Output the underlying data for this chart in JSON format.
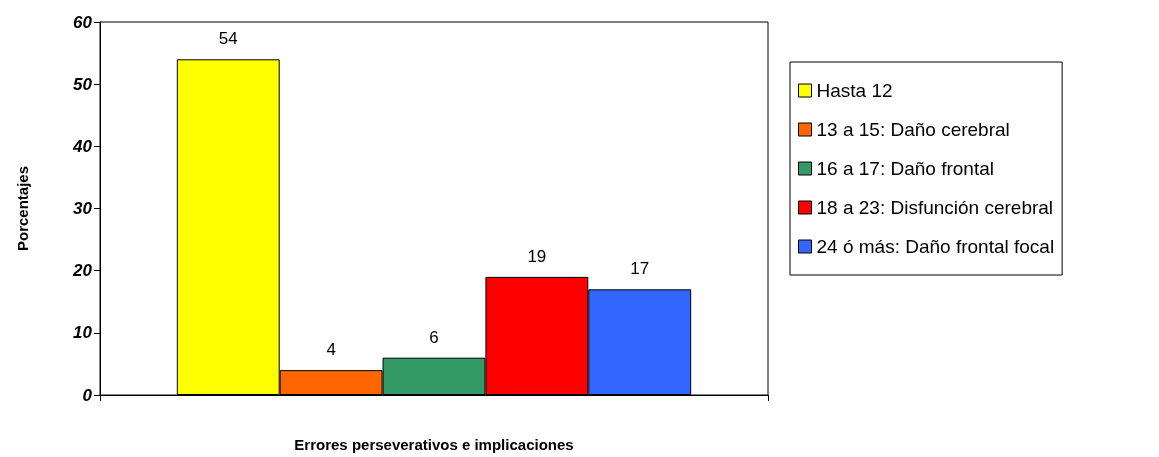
{
  "chart_data": {
    "type": "bar",
    "xlabel": "Errores perseverativos e implicaciones",
    "ylabel": "Porcentajes",
    "categories": [
      null
    ],
    "series": [
      {
        "name": "Hasta 12",
        "color": "#ffff00",
        "values": [
          54
        ]
      },
      {
        "name": "13 a 15: Daño cerebral",
        "color": "#ff6600",
        "values": [
          4
        ]
      },
      {
        "name": "16 a 17: Daño frontal",
        "color": "#339966",
        "values": [
          6
        ]
      },
      {
        "name": "18 a 23: Disfunción cerebral",
        "color": "#ff0000",
        "values": [
          19
        ]
      },
      {
        "name": "24 ó más: Daño frontal focal",
        "color": "#3366ff",
        "values": [
          17
        ]
      }
    ],
    "ylim": [
      0,
      60
    ],
    "yticks": [
      0,
      10,
      20,
      30,
      40,
      50,
      60
    ],
    "grid": false,
    "legend": "right",
    "data_labels": true
  }
}
